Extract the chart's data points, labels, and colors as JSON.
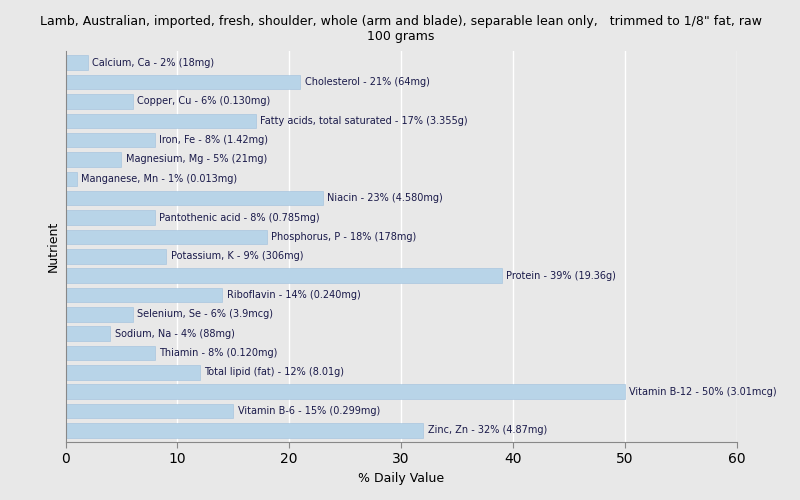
{
  "title": "Lamb, Australian, imported, fresh, shoulder, whole (arm and blade), separable lean only,   trimmed to 1/8\" fat, raw\n100 grams",
  "xlabel": "% Daily Value",
  "ylabel": "Nutrient",
  "background_color": "#e8e8e8",
  "plot_bg_color": "#e8e8e8",
  "bar_color": "#b8d4e8",
  "bar_edge_color": "#a0c0dc",
  "text_color": "#1a1a4a",
  "xlim": [
    0,
    60
  ],
  "xticks": [
    0,
    10,
    20,
    30,
    40,
    50,
    60
  ],
  "grid_color": "#ffffff",
  "nutrients": [
    {
      "label": "Calcium, Ca - 2% (18mg)",
      "value": 2
    },
    {
      "label": "Cholesterol - 21% (64mg)",
      "value": 21
    },
    {
      "label": "Copper, Cu - 6% (0.130mg)",
      "value": 6
    },
    {
      "label": "Fatty acids, total saturated - 17% (3.355g)",
      "value": 17
    },
    {
      "label": "Iron, Fe - 8% (1.42mg)",
      "value": 8
    },
    {
      "label": "Magnesium, Mg - 5% (21mg)",
      "value": 5
    },
    {
      "label": "Manganese, Mn - 1% (0.013mg)",
      "value": 1
    },
    {
      "label": "Niacin - 23% (4.580mg)",
      "value": 23
    },
    {
      "label": "Pantothenic acid - 8% (0.785mg)",
      "value": 8
    },
    {
      "label": "Phosphorus, P - 18% (178mg)",
      "value": 18
    },
    {
      "label": "Potassium, K - 9% (306mg)",
      "value": 9
    },
    {
      "label": "Protein - 39% (19.36g)",
      "value": 39
    },
    {
      "label": "Riboflavin - 14% (0.240mg)",
      "value": 14
    },
    {
      "label": "Selenium, Se - 6% (3.9mcg)",
      "value": 6
    },
    {
      "label": "Sodium, Na - 4% (88mg)",
      "value": 4
    },
    {
      "label": "Thiamin - 8% (0.120mg)",
      "value": 8
    },
    {
      "label": "Total lipid (fat) - 12% (8.01g)",
      "value": 12
    },
    {
      "label": "Vitamin B-12 - 50% (3.01mcg)",
      "value": 50
    },
    {
      "label": "Vitamin B-6 - 15% (0.299mg)",
      "value": 15
    },
    {
      "label": "Zinc, Zn - 32% (4.87mg)",
      "value": 32
    }
  ]
}
